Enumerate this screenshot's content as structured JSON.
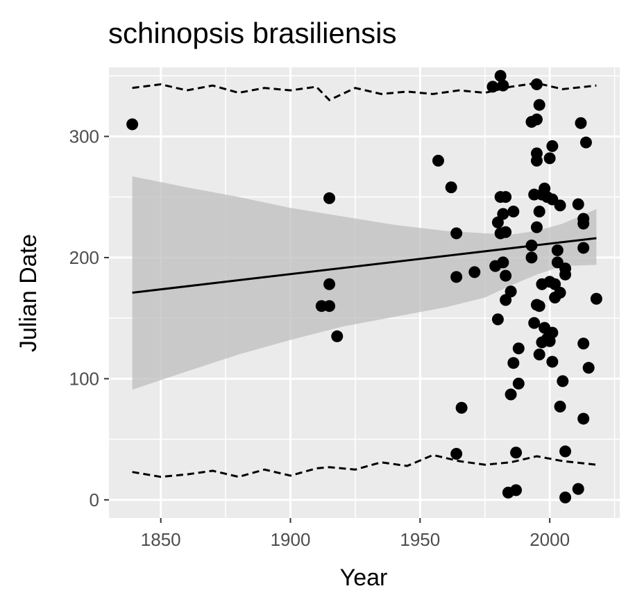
{
  "chart_data": {
    "type": "scatter",
    "title": "schinopsis brasiliensis",
    "xlabel": "Year",
    "ylabel": "Julian Date",
    "xlim": [
      1830,
      2027
    ],
    "ylim": [
      -15,
      357
    ],
    "x_ticks": [
      1850,
      1900,
      1950,
      2000
    ],
    "y_ticks": [
      0,
      100,
      200,
      300
    ],
    "x_tick_labels": [
      "1850",
      "1900",
      "1950",
      "2000"
    ],
    "y_tick_labels": [
      "0",
      "100",
      "200",
      "300"
    ],
    "grid": true,
    "legend": "none",
    "colors": {
      "panel": "#ebebeb",
      "grid": "#ffffff",
      "points": "#000000",
      "ribbon": "#bdbdbd",
      "fit_line": "#000000"
    },
    "points": [
      [
        1839,
        310
      ],
      [
        1912,
        160
      ],
      [
        1915,
        160
      ],
      [
        1915,
        249
      ],
      [
        1915,
        178
      ],
      [
        1918,
        135
      ],
      [
        1957,
        280
      ],
      [
        1962,
        258
      ],
      [
        1964,
        220
      ],
      [
        1964,
        184
      ],
      [
        1964,
        38
      ],
      [
        1966,
        76
      ],
      [
        1971,
        188
      ],
      [
        1978,
        341
      ],
      [
        1979,
        193
      ],
      [
        1980,
        149
      ],
      [
        1980,
        229
      ],
      [
        1981,
        350
      ],
      [
        1981,
        250
      ],
      [
        1981,
        220
      ],
      [
        1982,
        342
      ],
      [
        1982,
        236
      ],
      [
        1982,
        196
      ],
      [
        1983,
        250
      ],
      [
        1983,
        221
      ],
      [
        1983,
        185
      ],
      [
        1983,
        165
      ],
      [
        1984,
        6
      ],
      [
        1985,
        172
      ],
      [
        1985,
        87
      ],
      [
        1986,
        238
      ],
      [
        1986,
        113
      ],
      [
        1987,
        39
      ],
      [
        1987,
        8
      ],
      [
        1988,
        125
      ],
      [
        1988,
        96
      ],
      [
        1993,
        312
      ],
      [
        1993,
        210
      ],
      [
        1993,
        200
      ],
      [
        1994,
        252
      ],
      [
        1994,
        146
      ],
      [
        1995,
        343
      ],
      [
        1995,
        314
      ],
      [
        1995,
        286
      ],
      [
        1995,
        280
      ],
      [
        1995,
        225
      ],
      [
        1995,
        161
      ],
      [
        1996,
        326
      ],
      [
        1996,
        238
      ],
      [
        1996,
        160
      ],
      [
        1996,
        120
      ],
      [
        1997,
        252
      ],
      [
        1997,
        178
      ],
      [
        1997,
        130
      ],
      [
        1998,
        257
      ],
      [
        1998,
        142
      ],
      [
        1999,
        250
      ],
      [
        1999,
        133
      ],
      [
        2000,
        282
      ],
      [
        2000,
        180
      ],
      [
        2000,
        131
      ],
      [
        2001,
        292
      ],
      [
        2001,
        248
      ],
      [
        2001,
        138
      ],
      [
        2001,
        114
      ],
      [
        2002,
        167
      ],
      [
        2002,
        178
      ],
      [
        2003,
        206
      ],
      [
        2003,
        196
      ],
      [
        2004,
        243
      ],
      [
        2004,
        171
      ],
      [
        2004,
        77
      ],
      [
        2005,
        98
      ],
      [
        2006,
        191
      ],
      [
        2006,
        186
      ],
      [
        2006,
        40
      ],
      [
        2006,
        2
      ],
      [
        2011,
        244
      ],
      [
        2011,
        9
      ],
      [
        2012,
        311
      ],
      [
        2013,
        232
      ],
      [
        2013,
        228
      ],
      [
        2013,
        208
      ],
      [
        2013,
        129
      ],
      [
        2013,
        67
      ],
      [
        2014,
        295
      ],
      [
        2015,
        109
      ],
      [
        2018,
        166
      ]
    ],
    "fit_line": {
      "x": [
        1839,
        2018
      ],
      "y": [
        171,
        216
      ]
    },
    "confidence_band": {
      "x": [
        1839,
        1860,
        1880,
        1900,
        1920,
        1940,
        1960,
        1975,
        1985,
        1995,
        2005,
        2018
      ],
      "lower": [
        91,
        106,
        120,
        132,
        143,
        151,
        159,
        167,
        177,
        186,
        193,
        194
      ],
      "upper": [
        267,
        258,
        250,
        241,
        234,
        227,
        222,
        220,
        219,
        222,
        228,
        240
      ]
    },
    "upper_dashed_line": {
      "x": [
        1839,
        1850,
        1860,
        1870,
        1880,
        1890,
        1900,
        1910,
        1915,
        1925,
        1935,
        1945,
        1955,
        1965,
        1975,
        1985,
        1995,
        2005,
        2018
      ],
      "y": [
        340,
        343,
        338,
        342,
        336,
        340,
        338,
        341,
        330,
        340,
        335,
        337,
        335,
        338,
        336,
        341,
        344,
        339,
        342
      ]
    },
    "lower_dashed_line": {
      "x": [
        1839,
        1850,
        1860,
        1870,
        1880,
        1890,
        1900,
        1910,
        1915,
        1925,
        1935,
        1945,
        1955,
        1965,
        1975,
        1985,
        1995,
        2005,
        2018
      ],
      "y": [
        23,
        19,
        21,
        24,
        19,
        25,
        20,
        26,
        27,
        25,
        31,
        28,
        37,
        32,
        29,
        31,
        36,
        32,
        29
      ]
    }
  }
}
